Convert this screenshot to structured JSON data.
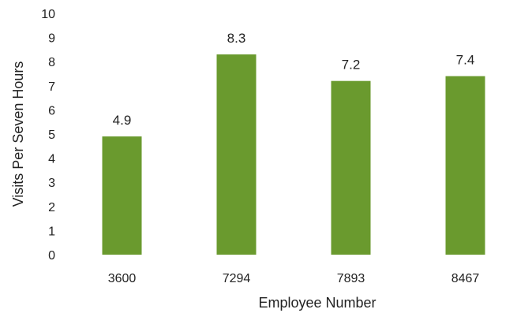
{
  "chart_data": {
    "type": "bar",
    "title": "",
    "xlabel": "Employee Number",
    "ylabel": "Visits Per Seven Hours",
    "categories": [
      "3600",
      "7294",
      "7893",
      "8467"
    ],
    "values": [
      4.9,
      8.3,
      7.2,
      7.4
    ],
    "data_labels": [
      "4.9",
      "8.3",
      "7.2",
      "7.4"
    ],
    "y_ticks": [
      0,
      1,
      2,
      3,
      4,
      5,
      6,
      7,
      8,
      9,
      10
    ],
    "ylim": [
      0,
      10
    ],
    "grid": false,
    "legend": "none",
    "bar_color": "#6a9a2e"
  }
}
